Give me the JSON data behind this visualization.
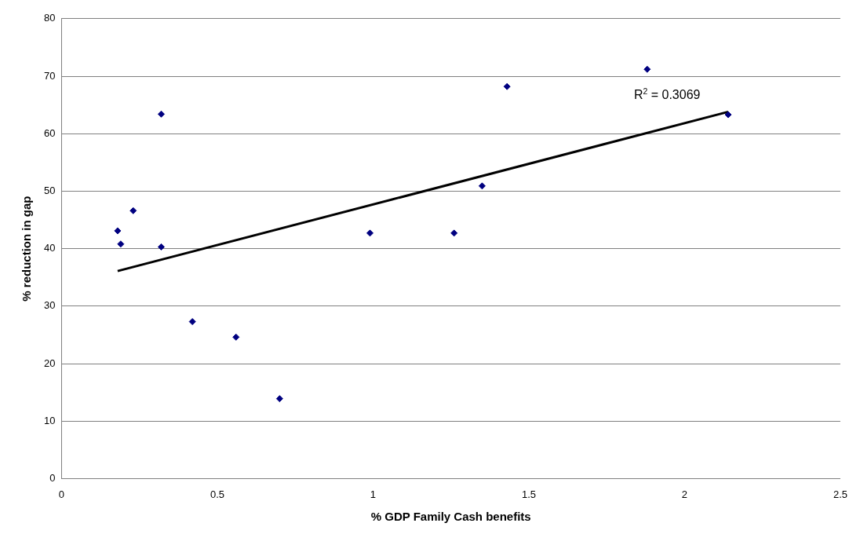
{
  "chart_data": {
    "type": "scatter",
    "xlabel": "% GDP Family Cash benefits",
    "ylabel": "% reduction in gap",
    "series": [
      {
        "type": "scatter",
        "color": "#000080",
        "marker": "diamond",
        "x": [
          0.18,
          0.19,
          0.23,
          0.32,
          0.32,
          0.42,
          0.56,
          0.7,
          0.99,
          1.26,
          1.35,
          1.43,
          1.88,
          2.14
        ],
        "values": [
          43.1,
          40.8,
          46.6,
          63.4,
          40.3,
          27.3,
          24.6,
          13.9,
          42.7,
          42.7,
          50.9,
          68.2,
          71.2,
          63.3
        ]
      },
      {
        "type": "line",
        "color": "#000000",
        "marker": "none",
        "x": [
          0.18,
          2.14
        ],
        "values": [
          36.1,
          63.8
        ]
      }
    ],
    "xlim": [
      0,
      2.5
    ],
    "xticks": [
      0,
      0.5,
      1,
      1.5,
      2,
      2.5
    ],
    "ylim": [
      0,
      80
    ],
    "yticks": [
      0,
      10,
      20,
      30,
      40,
      50,
      60,
      70,
      80
    ],
    "grid": "y",
    "legend": false,
    "annotations": [
      "R$^{2}$ = 0.3069"
    ]
  }
}
